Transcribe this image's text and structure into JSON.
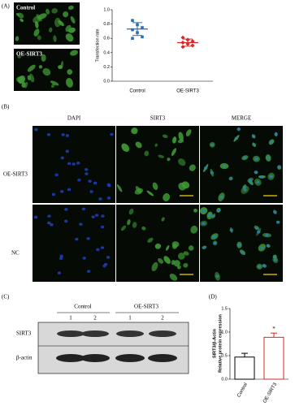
{
  "panel_labels": [
    "(A)",
    "(B)",
    "(C)",
    "(D)"
  ],
  "panel_a": {
    "image_labels": [
      "Control",
      "OE-SIRT3"
    ]
  },
  "panel_b": {
    "columns": [
      "DAPI",
      "SIRT3",
      "MERGE"
    ],
    "rows": [
      "OE-SIRT3",
      "NC"
    ]
  },
  "panel_c": {
    "groups": [
      "Control",
      "OE-SIRT3"
    ],
    "lanes": [
      "1",
      "2",
      "1",
      "2"
    ],
    "bands": [
      "SIRT3",
      "β-actin"
    ]
  },
  "chart_data": [
    {
      "type": "strip",
      "ylabel": "Transfection rate",
      "series": [
        {
          "name": "Control",
          "color": "#2a6db5",
          "values": [
            0.85,
            0.79,
            0.75,
            0.72,
            0.68,
            0.62,
            0.6
          ],
          "mean": 0.73,
          "sd": 0.09
        },
        {
          "name": "OE-SIRT3",
          "color": "#d62728",
          "values": [
            0.61,
            0.58,
            0.56,
            0.54,
            0.52,
            0.5,
            0.48
          ],
          "mean": 0.54,
          "sd": 0.05
        }
      ],
      "ylim": [
        0,
        1
      ],
      "yticks": [
        {
          "value": 0,
          "label": "0.0"
        },
        0.2,
        0.4,
        0.6,
        0.8,
        {
          "value": 1,
          "label": "1.0"
        }
      ]
    },
    {
      "type": "bar",
      "ylabel": [
        "SIRT3/β-Actin",
        "Relative protein expression"
      ],
      "categories": [
        "Control",
        "OE-SIRT3"
      ],
      "values": [
        0.47,
        0.89
      ],
      "errors": [
        0.08,
        0.09
      ],
      "colors": [
        "#000000",
        "#d62728"
      ],
      "annotations": [
        {
          "label": "*",
          "x": "OE-SIRT3"
        }
      ],
      "ylim": [
        0,
        1.5
      ],
      "yticks": [
        {
          "value": 0,
          "label": "0.0"
        },
        0.5,
        {
          "value": 1,
          "label": "1.0"
        },
        1.5
      ]
    }
  ]
}
